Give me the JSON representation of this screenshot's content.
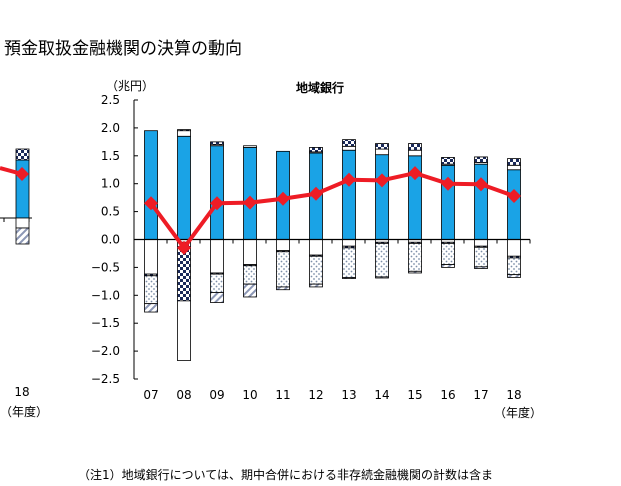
{
  "page": {
    "title": "預金取扱金融機関の決算の動向",
    "footnote": "（注1）地域銀行については、期中合併における非存続金融機関の計数は含ま"
  },
  "left_panel_partial": {
    "category": "18",
    "year_label": "（年度）"
  },
  "colors": {
    "blue": "#1aa3e6",
    "red": "#ee1c25",
    "navy": "#1a2a5a",
    "dots": "#7d8fa8",
    "hatch": "#8c97b5"
  },
  "chart_data": {
    "type": "bar",
    "title": "地域銀行",
    "unit_label": "（兆円）",
    "xlabel": "（年度）",
    "categories": [
      "07",
      "08",
      "09",
      "10",
      "11",
      "12",
      "13",
      "14",
      "15",
      "16",
      "17",
      "18"
    ],
    "ylim": [
      -2.5,
      2.5
    ],
    "yticks": [
      "2.5",
      "2.0",
      "1.5",
      "1.0",
      "0.5",
      "0.0",
      "−0.5",
      "−1.0",
      "−1.5",
      "−2.0",
      "−2.5"
    ],
    "stacked_positive": [
      {
        "pattern": "blue",
        "values": [
          1.95,
          1.85,
          1.68,
          1.65,
          1.58,
          1.55,
          1.6,
          1.52,
          1.5,
          1.33,
          1.35,
          1.25
        ]
      },
      {
        "pattern": "white",
        "values": [
          0.0,
          0.1,
          0.02,
          0.03,
          0.0,
          0.02,
          0.07,
          0.1,
          0.1,
          0.02,
          0.03,
          0.08
        ]
      },
      {
        "pattern": "check",
        "values": [
          0.0,
          0.02,
          0.05,
          0.0,
          0.0,
          0.08,
          0.12,
          0.1,
          0.12,
          0.12,
          0.1,
          0.12
        ]
      }
    ],
    "stacked_negative": [
      {
        "pattern": "white",
        "values": [
          -0.62,
          -0.05,
          -0.6,
          -0.45,
          -0.2,
          -0.28,
          -0.12,
          -0.05,
          -0.05,
          -0.05,
          -0.12,
          -0.3
        ]
      },
      {
        "pattern": "check",
        "values": [
          -0.03,
          -1.05,
          -0.02,
          -0.02,
          -0.02,
          -0.02,
          -0.03,
          -0.02,
          -0.02,
          -0.02,
          -0.02,
          -0.03
        ]
      },
      {
        "pattern": "dots",
        "values": [
          -0.5,
          -0.0,
          -0.33,
          -0.33,
          -0.63,
          -0.5,
          -0.53,
          -0.6,
          -0.5,
          -0.38,
          -0.35,
          -0.3
        ]
      },
      {
        "pattern": "hatch",
        "values": [
          -0.15,
          -0.0,
          -0.18,
          -0.23,
          -0.05,
          -0.05,
          -0.02,
          -0.02,
          -0.03,
          -0.05,
          -0.03,
          -0.05
        ]
      },
      {
        "pattern": "white",
        "values": [
          0.0,
          -1.07,
          0.0,
          0.0,
          0.0,
          0.0,
          0.0,
          0.0,
          0.0,
          0.0,
          0.0,
          0.0
        ]
      }
    ],
    "line": {
      "values": [
        0.65,
        -0.15,
        0.65,
        0.66,
        0.73,
        0.82,
        1.07,
        1.06,
        1.19,
        1.0,
        0.99,
        0.78
      ]
    }
  }
}
